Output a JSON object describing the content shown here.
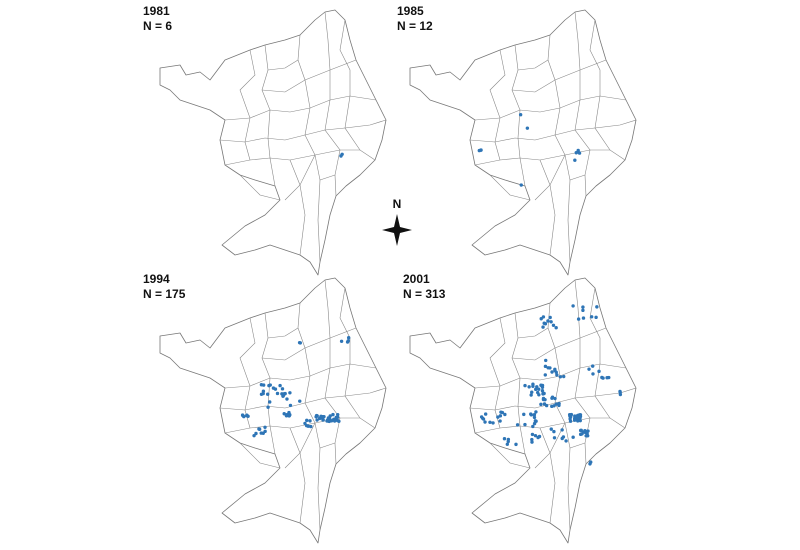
{
  "panels": [
    {
      "year": "1981",
      "count": "N = 6"
    },
    {
      "year": "1985",
      "count": "N = 12"
    },
    {
      "year": "1994",
      "count": "N = 175"
    },
    {
      "year": "2001",
      "count": "N = 313"
    }
  ],
  "compass": "N"
}
